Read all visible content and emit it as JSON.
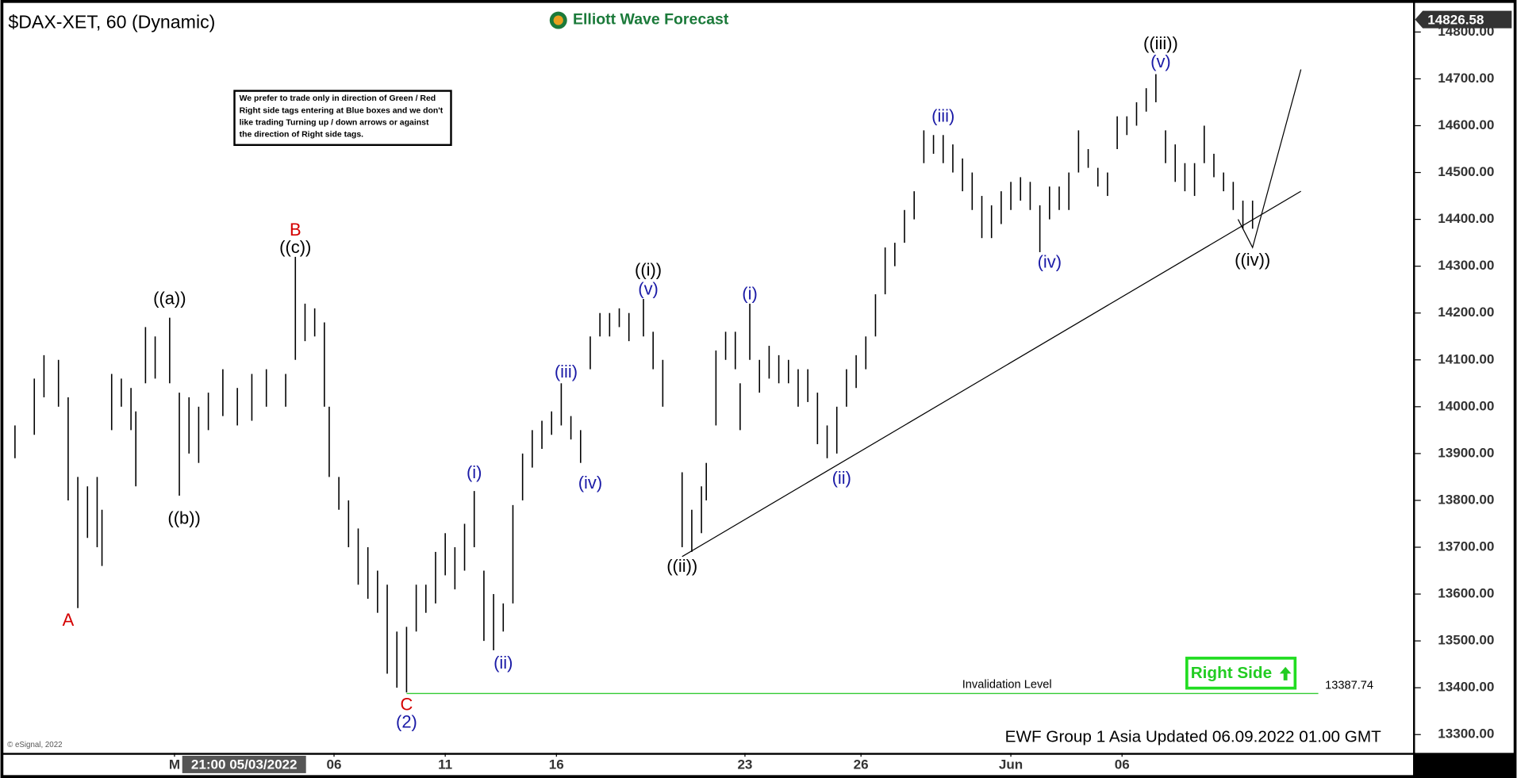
{
  "chart_data": {
    "type": "hlc-bars",
    "title": "$DAX-XET, 60 (Dynamic)",
    "logo": "Elliott Wave Forecast",
    "note": [
      "We prefer to trade only in direction of Green / Red",
      "Right side tags entering at Blue boxes and we don't",
      "like trading Turning up / down arrows or against",
      "the direction of Right side tags."
    ],
    "footer": "EWF Group 1 Asia Updated 06.09.2022 01.00 GMT",
    "copyright": "© eSignal, 2022",
    "cursor_label": "21:00 05/03/2022",
    "right_side": "Right Side",
    "last_price": 14826.58,
    "invalidation": {
      "label": "Invalidation Level",
      "value": 13387.74,
      "x_start": 83
    },
    "xlim": [
      0,
      287
    ],
    "ylim": [
      13263,
      14858
    ],
    "yticks": [
      {
        "value": 13300,
        "label": "13300.00"
      },
      {
        "value": 13400,
        "label": "13400.00"
      },
      {
        "value": 13500,
        "label": "13500.00"
      },
      {
        "value": 13600,
        "label": "13600.00"
      },
      {
        "value": 13700,
        "label": "13700.00"
      },
      {
        "value": 13800,
        "label": "13800.00"
      },
      {
        "value": 13900,
        "label": "13900.00"
      },
      {
        "value": 14000,
        "label": "14000.00"
      },
      {
        "value": 14100,
        "label": "14100.00"
      },
      {
        "value": 14200,
        "label": "14200.00"
      },
      {
        "value": 14300,
        "label": "14300.00"
      },
      {
        "value": 14400,
        "label": "14400.00"
      },
      {
        "value": 14500,
        "label": "14500.00"
      },
      {
        "value": 14600,
        "label": "14600.00"
      },
      {
        "value": 14700,
        "label": "14700.00"
      },
      {
        "value": 14800,
        "label": "14800.00"
      }
    ],
    "xticks": [
      {
        "value": 35,
        "label": "M"
      },
      {
        "value": 68,
        "label": "06"
      },
      {
        "value": 91,
        "label": "11"
      },
      {
        "value": 114,
        "label": "16"
      },
      {
        "value": 153,
        "label": "23"
      },
      {
        "value": 177,
        "label": "26"
      },
      {
        "value": 208,
        "label": "Jun"
      },
      {
        "value": 231,
        "label": "06"
      }
    ],
    "x": [
      2,
      6,
      8,
      11,
      13,
      15,
      17,
      19,
      20,
      22,
      24,
      26,
      27,
      29,
      31,
      34,
      36,
      38,
      40,
      42,
      45,
      48,
      51,
      54,
      58,
      60,
      62,
      64,
      66,
      67,
      69,
      71,
      73,
      75,
      77,
      79,
      81,
      83,
      85,
      87,
      89,
      91,
      93,
      95,
      97,
      99,
      101,
      103,
      105,
      107,
      109,
      111,
      113,
      115,
      117,
      119,
      121,
      123,
      125,
      127,
      129,
      132,
      134,
      136,
      140,
      142,
      144,
      145,
      147,
      149,
      151,
      152,
      154,
      156,
      158,
      160,
      162,
      164,
      166,
      168,
      170,
      172,
      174,
      176,
      178,
      180,
      182,
      184,
      186,
      188,
      190,
      192,
      194,
      196,
      198,
      200,
      202,
      204,
      206,
      208,
      210,
      212,
      214,
      216,
      218,
      220,
      222,
      224,
      226,
      228,
      230,
      232,
      234,
      236,
      238,
      240,
      242,
      244,
      246,
      248,
      250,
      252,
      254,
      256,
      258
    ],
    "low": [
      13890,
      13940,
      14020,
      14000,
      13800,
      13570,
      13720,
      13700,
      13660,
      13950,
      14000,
      13950,
      13830,
      14050,
      14060,
      14050,
      13810,
      13900,
      13880,
      13950,
      13980,
      13960,
      13970,
      14000,
      14000,
      14100,
      14140,
      14150,
      14000,
      13850,
      13780,
      13700,
      13620,
      13590,
      13560,
      13430,
      13400,
      13390,
      13520,
      13560,
      13580,
      13640,
      13610,
      13650,
      13700,
      13500,
      13480,
      13520,
      13580,
      13800,
      13870,
      13910,
      13940,
      13960,
      13930,
      13880,
      14080,
      14150,
      14150,
      14170,
      14140,
      14150,
      14080,
      14000,
      13700,
      13690,
      13730,
      13800,
      13960,
      14100,
      14080,
      13950,
      14100,
      14030,
      14060,
      14050,
      14050,
      14000,
      14010,
      13920,
      13890,
      13900,
      14000,
      14040,
      14080,
      14150,
      14240,
      14300,
      14350,
      14400,
      14520,
      14540,
      14520,
      14500,
      14460,
      14420,
      14360,
      14360,
      14390,
      14420,
      14440,
      14420,
      14330,
      14400,
      14420,
      14420,
      14500,
      14510,
      14470,
      14450,
      14550,
      14580,
      14600,
      14630,
      14650,
      14520,
      14480,
      14460,
      14450,
      14520,
      14490,
      14460,
      14420,
      14380,
      14380
    ],
    "high": [
      13960,
      14060,
      14110,
      14100,
      14020,
      13850,
      13830,
      13850,
      13780,
      14070,
      14060,
      14040,
      13990,
      14170,
      14150,
      14190,
      14030,
      14020,
      14000,
      14030,
      14080,
      14040,
      14070,
      14080,
      14070,
      14320,
      14220,
      14210,
      14180,
      14000,
      13850,
      13800,
      13740,
      13700,
      13650,
      13620,
      13520,
      13530,
      13620,
      13620,
      13690,
      13730,
      13700,
      13750,
      13820,
      13650,
      13600,
      13580,
      13790,
      13900,
      13950,
      13970,
      13990,
      14050,
      13980,
      13950,
      14150,
      14200,
      14200,
      14210,
      14200,
      14230,
      14160,
      14100,
      13860,
      13780,
      13830,
      13880,
      14120,
      14160,
      14160,
      14050,
      14220,
      14100,
      14130,
      14110,
      14100,
      14080,
      14080,
      14030,
      13960,
      14000,
      14080,
      14110,
      14150,
      14240,
      14340,
      14350,
      14420,
      14460,
      14590,
      14580,
      14580,
      14560,
      14530,
      14500,
      14450,
      14430,
      14460,
      14480,
      14490,
      14480,
      14430,
      14470,
      14470,
      14500,
      14590,
      14550,
      14510,
      14500,
      14620,
      14620,
      14650,
      14680,
      14710,
      14590,
      14560,
      14520,
      14520,
      14600,
      14540,
      14500,
      14480,
      14440,
      14440
    ],
    "annotations": [
      {
        "text": "A",
        "x": 13,
        "y": 13542,
        "color": "#d40000"
      },
      {
        "text": "((a))",
        "x": 34,
        "y": 14229,
        "color": "#000000"
      },
      {
        "text": "((b))",
        "x": 37,
        "y": 13760,
        "color": "#000000"
      },
      {
        "text": "B",
        "x": 60,
        "y": 14375,
        "color": "#d40000"
      },
      {
        "text": "((c))",
        "x": 60,
        "y": 14338,
        "color": "#000000"
      },
      {
        "text": "C",
        "x": 83,
        "y": 13362,
        "color": "#d40000"
      },
      {
        "text": "(2)",
        "x": 83,
        "y": 13325,
        "color": "#1a1aa6"
      },
      {
        "text": "(i)",
        "x": 97,
        "y": 13857,
        "color": "#1a1aa6"
      },
      {
        "text": "(ii)",
        "x": 103,
        "y": 13451,
        "color": "#1a1aa6"
      },
      {
        "text": "(iii)",
        "x": 116,
        "y": 14072,
        "color": "#1a1aa6"
      },
      {
        "text": "(iv)",
        "x": 121,
        "y": 13835,
        "color": "#1a1aa6"
      },
      {
        "text": "((i))",
        "x": 133,
        "y": 14290,
        "color": "#000000"
      },
      {
        "text": "(v)",
        "x": 133,
        "y": 14249,
        "color": "#1a1aa6"
      },
      {
        "text": "((ii))",
        "x": 140,
        "y": 13657,
        "color": "#000000"
      },
      {
        "text": "(i)",
        "x": 154,
        "y": 14239,
        "color": "#1a1aa6"
      },
      {
        "text": "(ii)",
        "x": 173,
        "y": 13845,
        "color": "#1a1aa6"
      },
      {
        "text": "(iii)",
        "x": 194,
        "y": 14618,
        "color": "#1a1aa6"
      },
      {
        "text": "(iv)",
        "x": 216,
        "y": 14307,
        "color": "#1a1aa6"
      },
      {
        "text": "((iii))",
        "x": 239,
        "y": 14773,
        "color": "#000000"
      },
      {
        "text": "(v)",
        "x": 239,
        "y": 14734,
        "color": "#1a1aa6"
      },
      {
        "text": "((iv))",
        "x": 258,
        "y": 14311,
        "color": "#000000"
      }
    ],
    "lines": [
      {
        "x": [
          140,
          268
        ],
        "y": [
          13680,
          14460
        ]
      },
      {
        "x": [
          255,
          258,
          268
        ],
        "y": [
          14400,
          14340,
          14720
        ]
      }
    ]
  }
}
